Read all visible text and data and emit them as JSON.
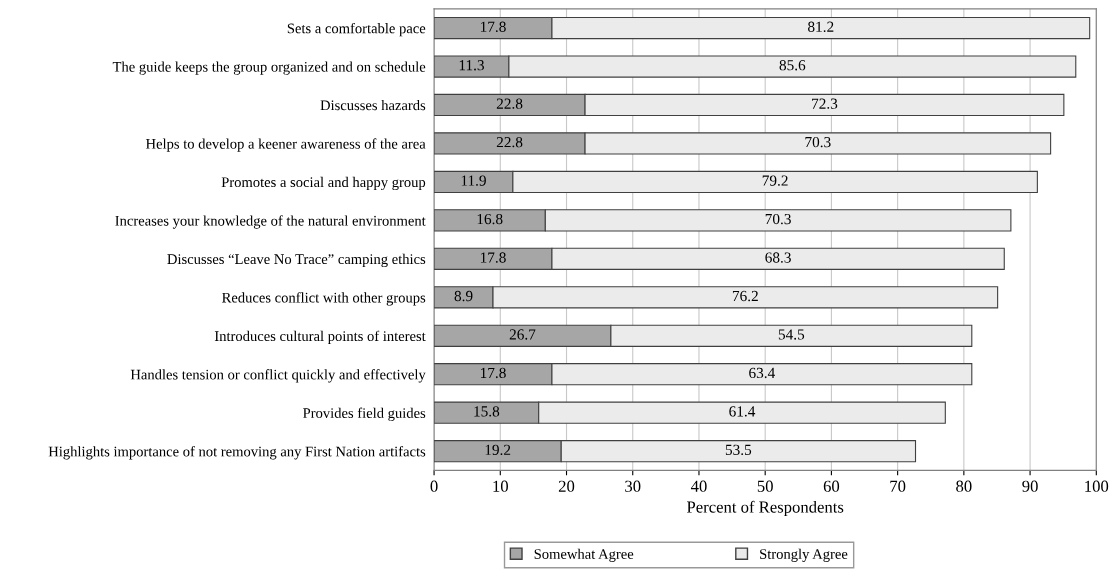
{
  "chart_data": {
    "type": "bar",
    "orientation": "horizontal",
    "stacked": true,
    "xlabel": "Percent of Respondents",
    "categories": [
      "Sets a comfortable pace",
      "The guide keeps the group organized and on schedule",
      "Discusses hazards",
      "Helps to develop a keener awareness of the area",
      "Promotes a social and happy group",
      "Increases your knowledge of the natural environment",
      "Discusses “Leave No Trace” camping ethics",
      "Reduces conflict with other groups",
      "Introduces cultural points of interest",
      "Handles tension or conflict quickly and effectively",
      "Provides field guides",
      "Highlights importance of not removing any First Nation artifacts"
    ],
    "series": [
      {
        "name": "Somewhat Agree",
        "color": "#a6a6a6",
        "values": [
          17.8,
          11.3,
          22.8,
          22.8,
          11.9,
          16.8,
          17.8,
          8.9,
          26.7,
          17.8,
          15.8,
          19.2
        ]
      },
      {
        "name": "Strongly Agree",
        "color": "#ebebeb",
        "values": [
          81.2,
          85.6,
          72.3,
          70.3,
          79.2,
          70.3,
          68.3,
          76.2,
          54.5,
          63.4,
          61.4,
          53.5
        ]
      }
    ],
    "xlim": [
      0,
      100
    ],
    "xticks": [
      0,
      10,
      20,
      30,
      40,
      50,
      60,
      70,
      80,
      90,
      100
    ],
    "grid": "x",
    "legend": "bottom",
    "data_labels": true
  }
}
